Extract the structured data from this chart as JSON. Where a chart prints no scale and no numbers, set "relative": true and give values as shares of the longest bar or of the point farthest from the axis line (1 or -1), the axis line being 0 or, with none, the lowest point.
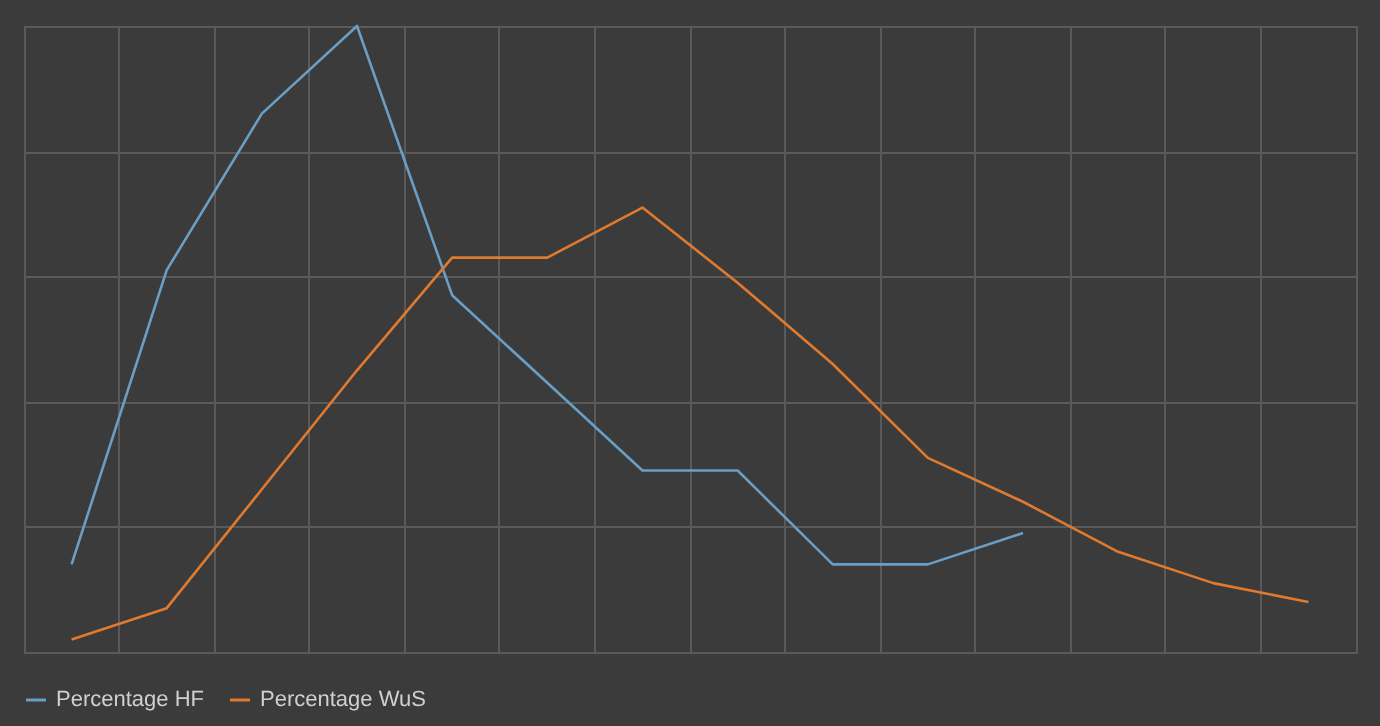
{
  "chart_data": {
    "type": "line",
    "relative": true,
    "grid": true,
    "legend": "bottom",
    "marker": "none",
    "line_style": "solid",
    "categories": [
      null,
      null,
      null,
      null,
      null,
      null,
      null,
      null,
      null,
      null,
      null,
      null,
      null,
      null
    ],
    "series": [
      {
        "name": "Percentage HF",
        "color": "#6b9ec4",
        "values": [
          0.14,
          0.61,
          0.86,
          1,
          0.57,
          0.43,
          0.29,
          0.29,
          0.14,
          0.14,
          0.19,
          null,
          null,
          null
        ]
      },
      {
        "name": "Percentage WuS",
        "color": "#e07a2e",
        "values": [
          0.02,
          0.07,
          0.26,
          0.45,
          0.63,
          0.63,
          0.71,
          0.59,
          0.46,
          0.31,
          0.24,
          0.16,
          0.11,
          0.08
        ]
      }
    ]
  }
}
